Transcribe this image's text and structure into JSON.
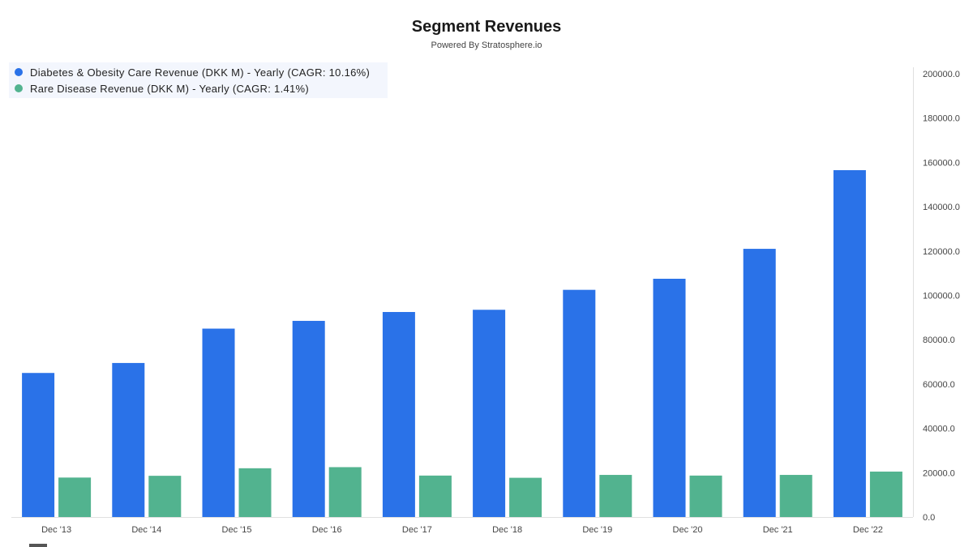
{
  "header": {
    "title": "Segment Revenues",
    "subtitle": "Powered By Stratosphere.io"
  },
  "colors": {
    "series1": "#2a72e8",
    "series2": "#52b38f",
    "axis": "#e0e0e0",
    "legend_bg": "#f3f6fd"
  },
  "chart_data": {
    "type": "bar",
    "categories": [
      "Dec '13",
      "Dec '14",
      "Dec '15",
      "Dec '16",
      "Dec '17",
      "Dec '18",
      "Dec '19",
      "Dec '20",
      "Dec '21",
      "Dec '22"
    ],
    "series": [
      {
        "name": "Diabetes & Obesity Care Revenue (DKK M) - Yearly (CAGR: 10.16%)",
        "values": [
          65000,
          69500,
          85000,
          88500,
          92500,
          93500,
          102500,
          107500,
          121000,
          156500
        ]
      },
      {
        "name": "Rare Disease Revenue (DKK M) - Yearly (CAGR: 1.41%)",
        "values": [
          17800,
          18600,
          22000,
          22500,
          18700,
          17700,
          19000,
          18700,
          19000,
          20500
        ]
      }
    ],
    "y_ticks": [
      "0.0",
      "20000.0",
      "40000.0",
      "60000.0",
      "80000.0",
      "100000.0",
      "120000.0",
      "140000.0",
      "160000.0",
      "180000.0",
      "200000.0"
    ],
    "ylim": [
      0,
      200000
    ],
    "y_axis_position": "right",
    "legend_position": "top-left",
    "grid": false
  }
}
